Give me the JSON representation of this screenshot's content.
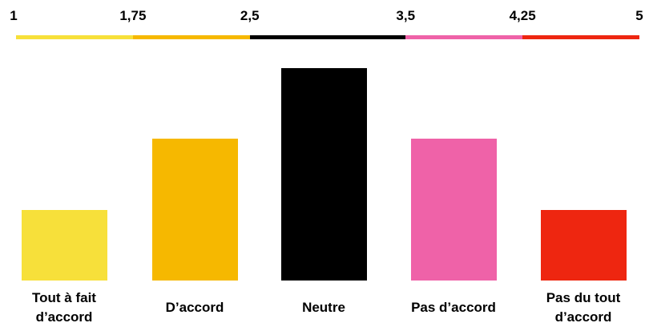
{
  "chart_data": {
    "type": "bar",
    "scale": {
      "ticks": [
        "1",
        "1,75",
        "2,5",
        "3,5",
        "4,25",
        "5"
      ],
      "tick_values": [
        1,
        1.75,
        2.5,
        3.5,
        4.25,
        5
      ],
      "segment_colors": [
        "#f7e03a",
        "#f6b800",
        "#000000",
        "#ef62a8",
        "#ee2610"
      ]
    },
    "categories": [
      "Tout à fait\nd’accord",
      "D’accord",
      "Neutre",
      "Pas d’accord",
      "Pas du tout\nd’accord"
    ],
    "values": [
      1,
      2,
      3,
      2,
      1
    ],
    "colors": [
      "#f7e03a",
      "#f6b800",
      "#000000",
      "#ef62a8",
      "#ee2610"
    ],
    "ylim": [
      0,
      3
    ],
    "grid": false,
    "legend": "none"
  }
}
